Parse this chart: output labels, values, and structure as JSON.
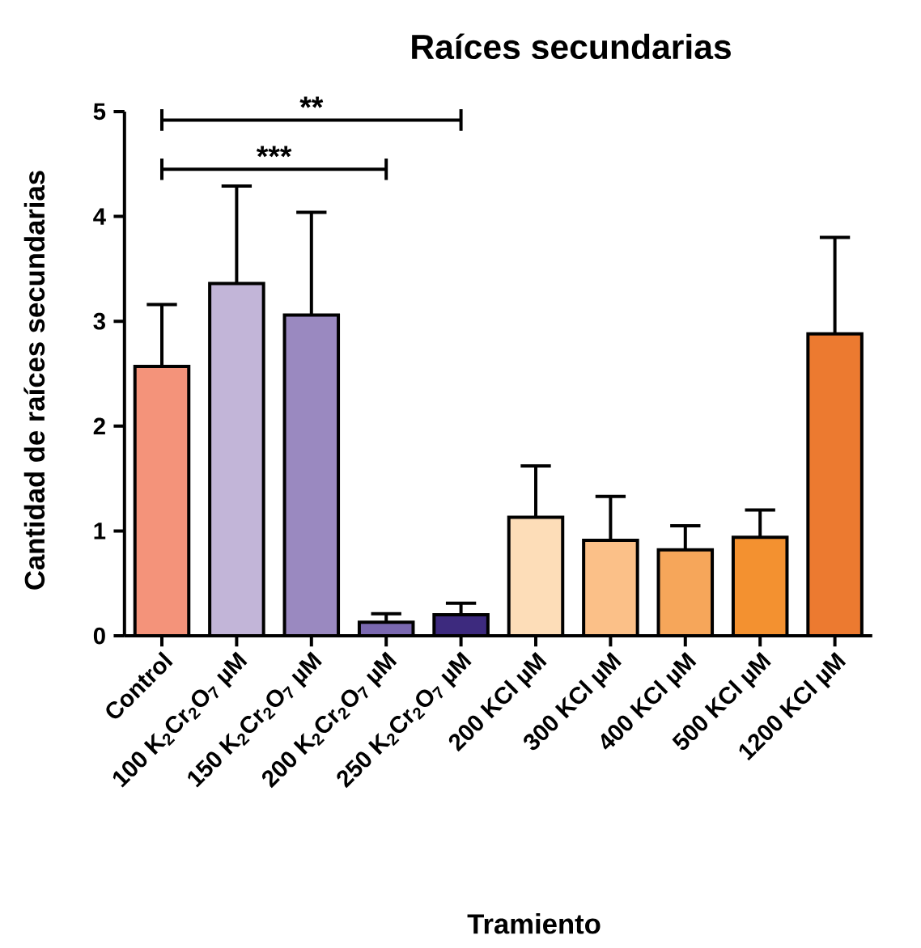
{
  "chart_data": {
    "type": "bar",
    "title": "Raíces secundarias",
    "xlabel": "Tramiento",
    "ylabel": "Cantidad de raíces secundarias",
    "categories": [
      "Control",
      "100 K$_{2}$Cr$_{2}$O$_{7}$ µM",
      "150 K$_{2}$Cr$_{2}$O$_{7}$ µM",
      "200 K$_{2}$Cr$_{2}$O$_{7}$ µM",
      "250 K$_{2}$Cr$_{2}$O$_{7}$ µM",
      "200 KCl µM",
      "300 KCl µM",
      "400 KCl µM",
      "500 KCl µM",
      "1200 KCl µM"
    ],
    "values": [
      2.57,
      3.36,
      3.06,
      0.13,
      0.2,
      1.13,
      0.91,
      0.82,
      0.94,
      2.88
    ],
    "errors": [
      [
        2.57,
        3.16
      ],
      [
        3.36,
        4.29
      ],
      [
        3.06,
        4.04
      ],
      [
        0.13,
        0.21
      ],
      [
        0.2,
        0.31
      ],
      [
        1.13,
        1.62
      ],
      [
        0.91,
        1.33
      ],
      [
        0.82,
        1.05
      ],
      [
        0.94,
        1.2
      ],
      [
        2.88,
        3.8
      ]
    ],
    "colors": [
      "#f4937a",
      "#c2b5d8",
      "#9a89c0",
      "#7a68b0",
      "#3d2a7e",
      "#fdddb8",
      "#fbc088",
      "#f6a65a",
      "#f39130",
      "#ec7a30"
    ],
    "ylim": [
      0,
      5
    ],
    "yticks": [
      0,
      1,
      2,
      3,
      4,
      5
    ],
    "annotations": [
      "**",
      "***"
    ]
  }
}
